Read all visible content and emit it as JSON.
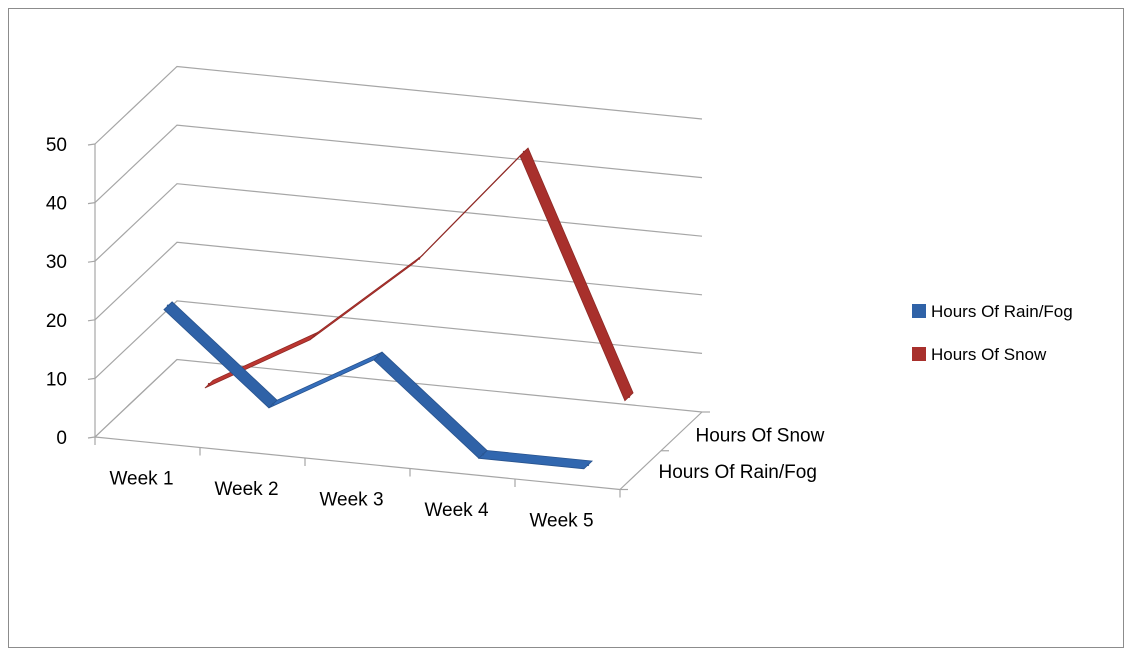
{
  "chart_data": {
    "type": "line",
    "title": "",
    "xlabel": "",
    "ylabel": "",
    "categories": [
      "Week 1",
      "Week 2",
      "Week 3",
      "Week 4",
      "Week 5"
    ],
    "ylim": [
      0,
      50
    ],
    "y_ticks": [
      "0",
      "10",
      "20",
      "30",
      "40",
      "50"
    ],
    "depth_categories": [
      "Hours Of Rain/Fog",
      "Hours Of Snow"
    ],
    "series": [
      {
        "name": "Hours Of Rain/Fog",
        "values": [
          20,
          5,
          15,
          0,
          0
        ],
        "color": "#2f62a7"
      },
      {
        "name": "Hours Of Snow",
        "values": [
          0,
          10,
          25,
          45,
          5
        ],
        "color": "#a8302c"
      }
    ],
    "grid": true,
    "legend_position": "right",
    "style": "3-D line"
  }
}
